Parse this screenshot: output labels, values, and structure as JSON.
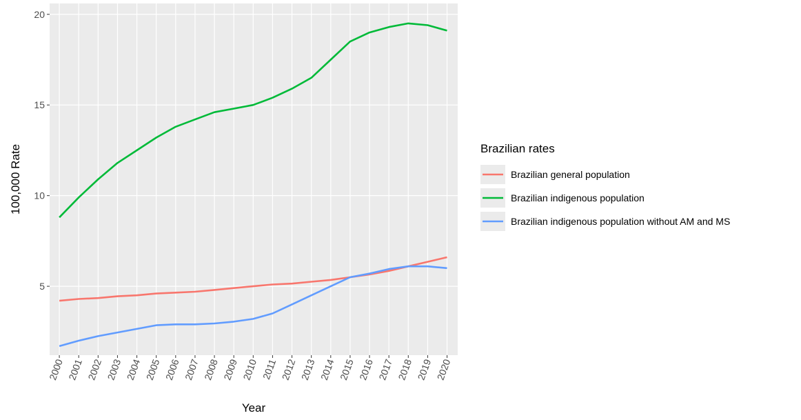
{
  "chart_data": {
    "type": "line",
    "x_label": "Year",
    "y_label": "100,000 Rate",
    "legend_title": "Brazilian rates",
    "legend_position": "right",
    "x": [
      2000,
      2001,
      2002,
      2003,
      2004,
      2005,
      2006,
      2007,
      2008,
      2009,
      2010,
      2011,
      2012,
      2013,
      2014,
      2015,
      2016,
      2017,
      2018,
      2019,
      2020
    ],
    "series": [
      {
        "name": "Brazilian general population",
        "color": "#F8766D",
        "values": [
          4.2,
          4.3,
          4.35,
          4.45,
          4.5,
          4.6,
          4.65,
          4.7,
          4.8,
          4.9,
          5.0,
          5.1,
          5.15,
          5.25,
          5.35,
          5.5,
          5.65,
          5.85,
          6.1,
          6.35,
          6.6
        ]
      },
      {
        "name": "Brazilian indigenous population",
        "color": "#00BA38",
        "values": [
          8.8,
          9.9,
          10.9,
          11.8,
          12.5,
          13.2,
          13.8,
          14.2,
          14.6,
          14.8,
          15.0,
          15.4,
          15.9,
          16.5,
          17.5,
          18.5,
          19.0,
          19.3,
          19.5,
          19.4,
          19.1
        ]
      },
      {
        "name": "Brazilian indigenous population without AM and MS",
        "color": "#619CFF",
        "values": [
          1.7,
          2.0,
          2.25,
          2.45,
          2.65,
          2.85,
          2.9,
          2.9,
          2.95,
          3.05,
          3.2,
          3.5,
          4.0,
          4.5,
          5.0,
          5.5,
          5.7,
          5.95,
          6.1,
          6.1,
          6.0
        ]
      }
    ],
    "xlim": [
      1999.5,
      2020.55
    ],
    "ylim": [
      1.2,
      20.6
    ],
    "xticks": [
      2000,
      2001,
      2002,
      2003,
      2004,
      2005,
      2006,
      2007,
      2008,
      2009,
      2010,
      2011,
      2012,
      2013,
      2014,
      2015,
      2016,
      2017,
      2018,
      2019,
      2020
    ],
    "yticks": [
      5,
      10,
      15,
      20
    ],
    "grid": true,
    "panel_color": "#EBEBEB"
  }
}
